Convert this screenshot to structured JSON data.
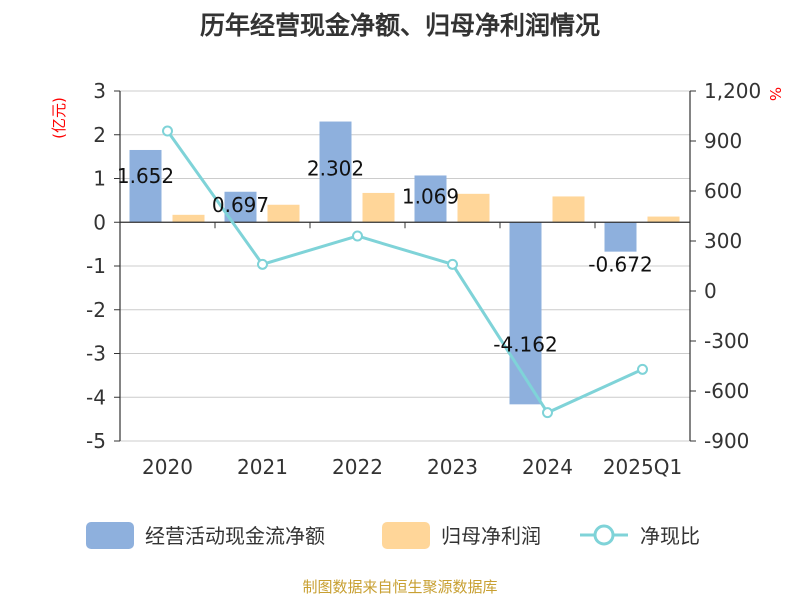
{
  "chart_data": {
    "type": "bar",
    "title": "历年经营现金净额、归母净利润情况",
    "categories": [
      "2020",
      "2021",
      "2022",
      "2023",
      "2024",
      "2025Q1"
    ],
    "y_left_unit": "(亿元)",
    "y_right_unit": "%",
    "y_left": {
      "min": -5,
      "max": 3,
      "step": 1,
      "ticks": [
        "3",
        "2",
        "1",
        "0",
        "-1",
        "-2",
        "-3",
        "-4",
        "-5"
      ]
    },
    "y_right": {
      "min": -900,
      "max": 1200,
      "step": 300,
      "ticks": [
        "1,200",
        "900",
        "600",
        "300",
        "0",
        "-300",
        "-600",
        "-900"
      ]
    },
    "series": [
      {
        "name": "经营活动现金流净额",
        "type": "bar",
        "axis": "left",
        "color": "#8eb0dd",
        "values": [
          1.652,
          0.697,
          2.302,
          1.069,
          -4.162,
          -0.672
        ],
        "labels": [
          "1.652",
          "0.697",
          "2.302",
          "1.069",
          "-4.162",
          "-0.672"
        ]
      },
      {
        "name": "归母净利润",
        "type": "bar",
        "axis": "left",
        "color": "#ffd699",
        "values": [
          0.17,
          0.4,
          0.67,
          0.65,
          0.59,
          0.13
        ]
      },
      {
        "name": "净现比",
        "type": "line",
        "axis": "right",
        "color": "#7fd3d8",
        "values": [
          960,
          160,
          330,
          160,
          -730,
          -470
        ]
      }
    ],
    "footer": "制图数据来自恒生聚源数据库"
  }
}
